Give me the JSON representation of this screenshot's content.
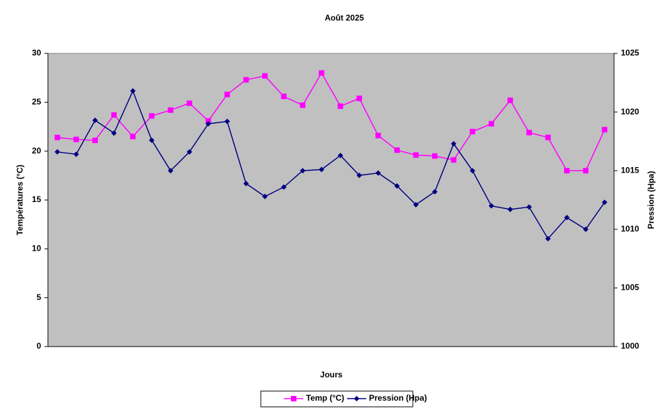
{
  "chart_data": {
    "type": "line",
    "title": "Août 2025",
    "x_label": "Jours",
    "y_label": "Températures (°C)",
    "y2_label": "Pression (Hpa)",
    "categories": [
      null,
      null,
      null,
      null,
      null,
      null,
      null,
      null,
      null,
      null,
      null,
      null,
      null,
      null,
      null,
      null,
      null,
      null,
      null,
      null,
      null,
      null,
      null,
      null,
      null,
      null,
      null,
      null,
      null,
      null
    ],
    "series": [
      {
        "name": "Temp (°C)",
        "color": "#ff00ff",
        "marker": "square",
        "values": [
          21.4,
          21.2,
          21.1,
          23.7,
          21.5,
          23.6,
          24.2,
          24.9,
          23.1,
          25.8,
          27.3,
          27.7,
          25.6,
          24.7,
          28.0,
          24.6,
          25.4,
          21.6,
          20.1,
          19.6,
          19.5,
          19.1,
          22.0,
          22.8,
          25.2,
          21.9,
          21.4,
          18.0,
          18.0,
          22.2
        ]
      },
      {
        "name": "Pression (Hpa)",
        "color": "#000080",
        "marker": "diamond",
        "axis": "y2",
        "values": [
          1016.6,
          1016.4,
          1019.3,
          1018.2,
          1021.8,
          1017.6,
          1015.0,
          1016.6,
          1019.0,
          1019.2,
          1013.9,
          1012.8,
          1013.6,
          1015.0,
          1015.1,
          1016.3,
          1014.6,
          1014.8,
          1013.7,
          1012.1,
          1013.2,
          1017.3,
          1015.0,
          1012.0,
          1011.7,
          1011.9,
          1009.2,
          1011.0,
          1010.0,
          1012.3
        ]
      }
    ],
    "ylim": [
      0,
      30
    ],
    "yticks": [
      0,
      5,
      10,
      15,
      20,
      25,
      30
    ],
    "y2lim": [
      1000,
      1025
    ],
    "y2ticks": [
      1000,
      1005,
      1010,
      1015,
      1020,
      1025
    ],
    "grid": false,
    "legend": "bottom"
  }
}
